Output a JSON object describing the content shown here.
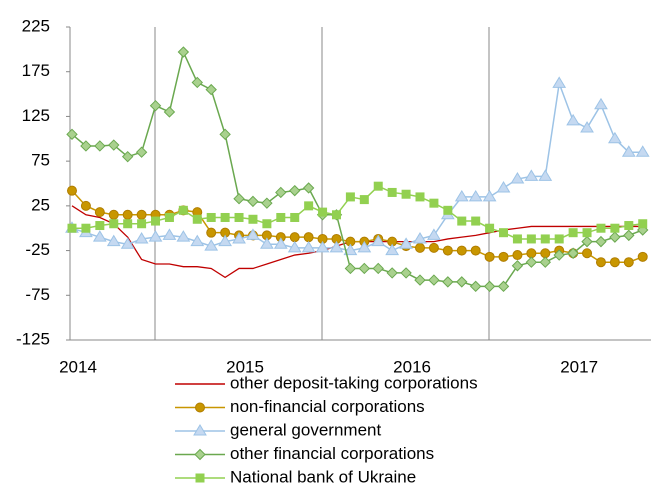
{
  "chart_data": {
    "type": "line",
    "categories": [
      "2014",
      null,
      null,
      null,
      null,
      null,
      null,
      null,
      null,
      null,
      null,
      null,
      "2015",
      null,
      null,
      null,
      null,
      null,
      null,
      null,
      null,
      null,
      null,
      null,
      "2016",
      null,
      null,
      null,
      null,
      null,
      null,
      null,
      null,
      null,
      null,
      null,
      "2017",
      null,
      null,
      null,
      null,
      null
    ],
    "ylim": [
      -125,
      225
    ],
    "yticks": [
      -125,
      -75,
      -25,
      25,
      75,
      125,
      175,
      225
    ],
    "series": [
      {
        "name": "other deposit-taking corporations",
        "color": "#c00000",
        "marker": "none",
        "values": [
          25,
          15,
          12,
          5,
          -10,
          -35,
          -40,
          -40,
          -43,
          -43,
          -45,
          -55,
          -45,
          -45,
          -40,
          -35,
          -30,
          -28,
          -25,
          -20,
          -15,
          -15,
          -15,
          -15,
          -15,
          -15,
          -15,
          -12,
          -10,
          -8,
          -5,
          -2,
          0,
          2,
          2,
          2,
          2,
          2,
          2,
          2,
          2,
          2
        ]
      },
      {
        "name": "non-financial corporations",
        "color": "#c89600",
        "marker": "circle",
        "values": [
          42,
          25,
          18,
          15,
          15,
          15,
          15,
          15,
          20,
          18,
          -5,
          -5,
          -8,
          -8,
          -8,
          -10,
          -10,
          -10,
          -12,
          -12,
          -15,
          -15,
          -12,
          -15,
          -20,
          -22,
          -22,
          -25,
          -25,
          -25,
          -32,
          -32,
          -30,
          -28,
          -28,
          -25,
          -28,
          -28,
          -38,
          -38,
          -38,
          -32
        ]
      },
      {
        "name": "general government",
        "color": "#9dc3e6",
        "marker": "triangle",
        "values": [
          0,
          -5,
          -10,
          -15,
          -18,
          -12,
          -10,
          -8,
          -10,
          -15,
          -20,
          -15,
          -12,
          -8,
          -18,
          -18,
          -22,
          -22,
          -22,
          -22,
          -25,
          -22,
          -15,
          -25,
          -18,
          -12,
          -8,
          15,
          35,
          35,
          35,
          45,
          55,
          58,
          58,
          162,
          120,
          112,
          138,
          100,
          85,
          85
        ]
      },
      {
        "name": "other financial corporations",
        "color": "#6aa84f",
        "marker": "diamond",
        "values": [
          105,
          92,
          92,
          93,
          80,
          85,
          137,
          130,
          197,
          163,
          155,
          105,
          33,
          30,
          28,
          40,
          42,
          45,
          15,
          15,
          -45,
          -45,
          -45,
          -50,
          -50,
          -58,
          -58,
          -60,
          -60,
          -65,
          -65,
          -65,
          -42,
          -38,
          -38,
          -30,
          -28,
          -15,
          -15,
          -10,
          -8,
          -2
        ]
      },
      {
        "name": "National bank of Ukraine",
        "color": "#92d050",
        "marker": "square",
        "values": [
          0,
          0,
          3,
          5,
          5,
          5,
          8,
          12,
          20,
          10,
          12,
          12,
          12,
          10,
          5,
          12,
          12,
          25,
          18,
          15,
          35,
          32,
          47,
          40,
          38,
          35,
          28,
          20,
          8,
          8,
          0,
          -5,
          -12,
          -12,
          -12,
          -12,
          -5,
          -5,
          0,
          0,
          3,
          5
        ]
      }
    ]
  }
}
